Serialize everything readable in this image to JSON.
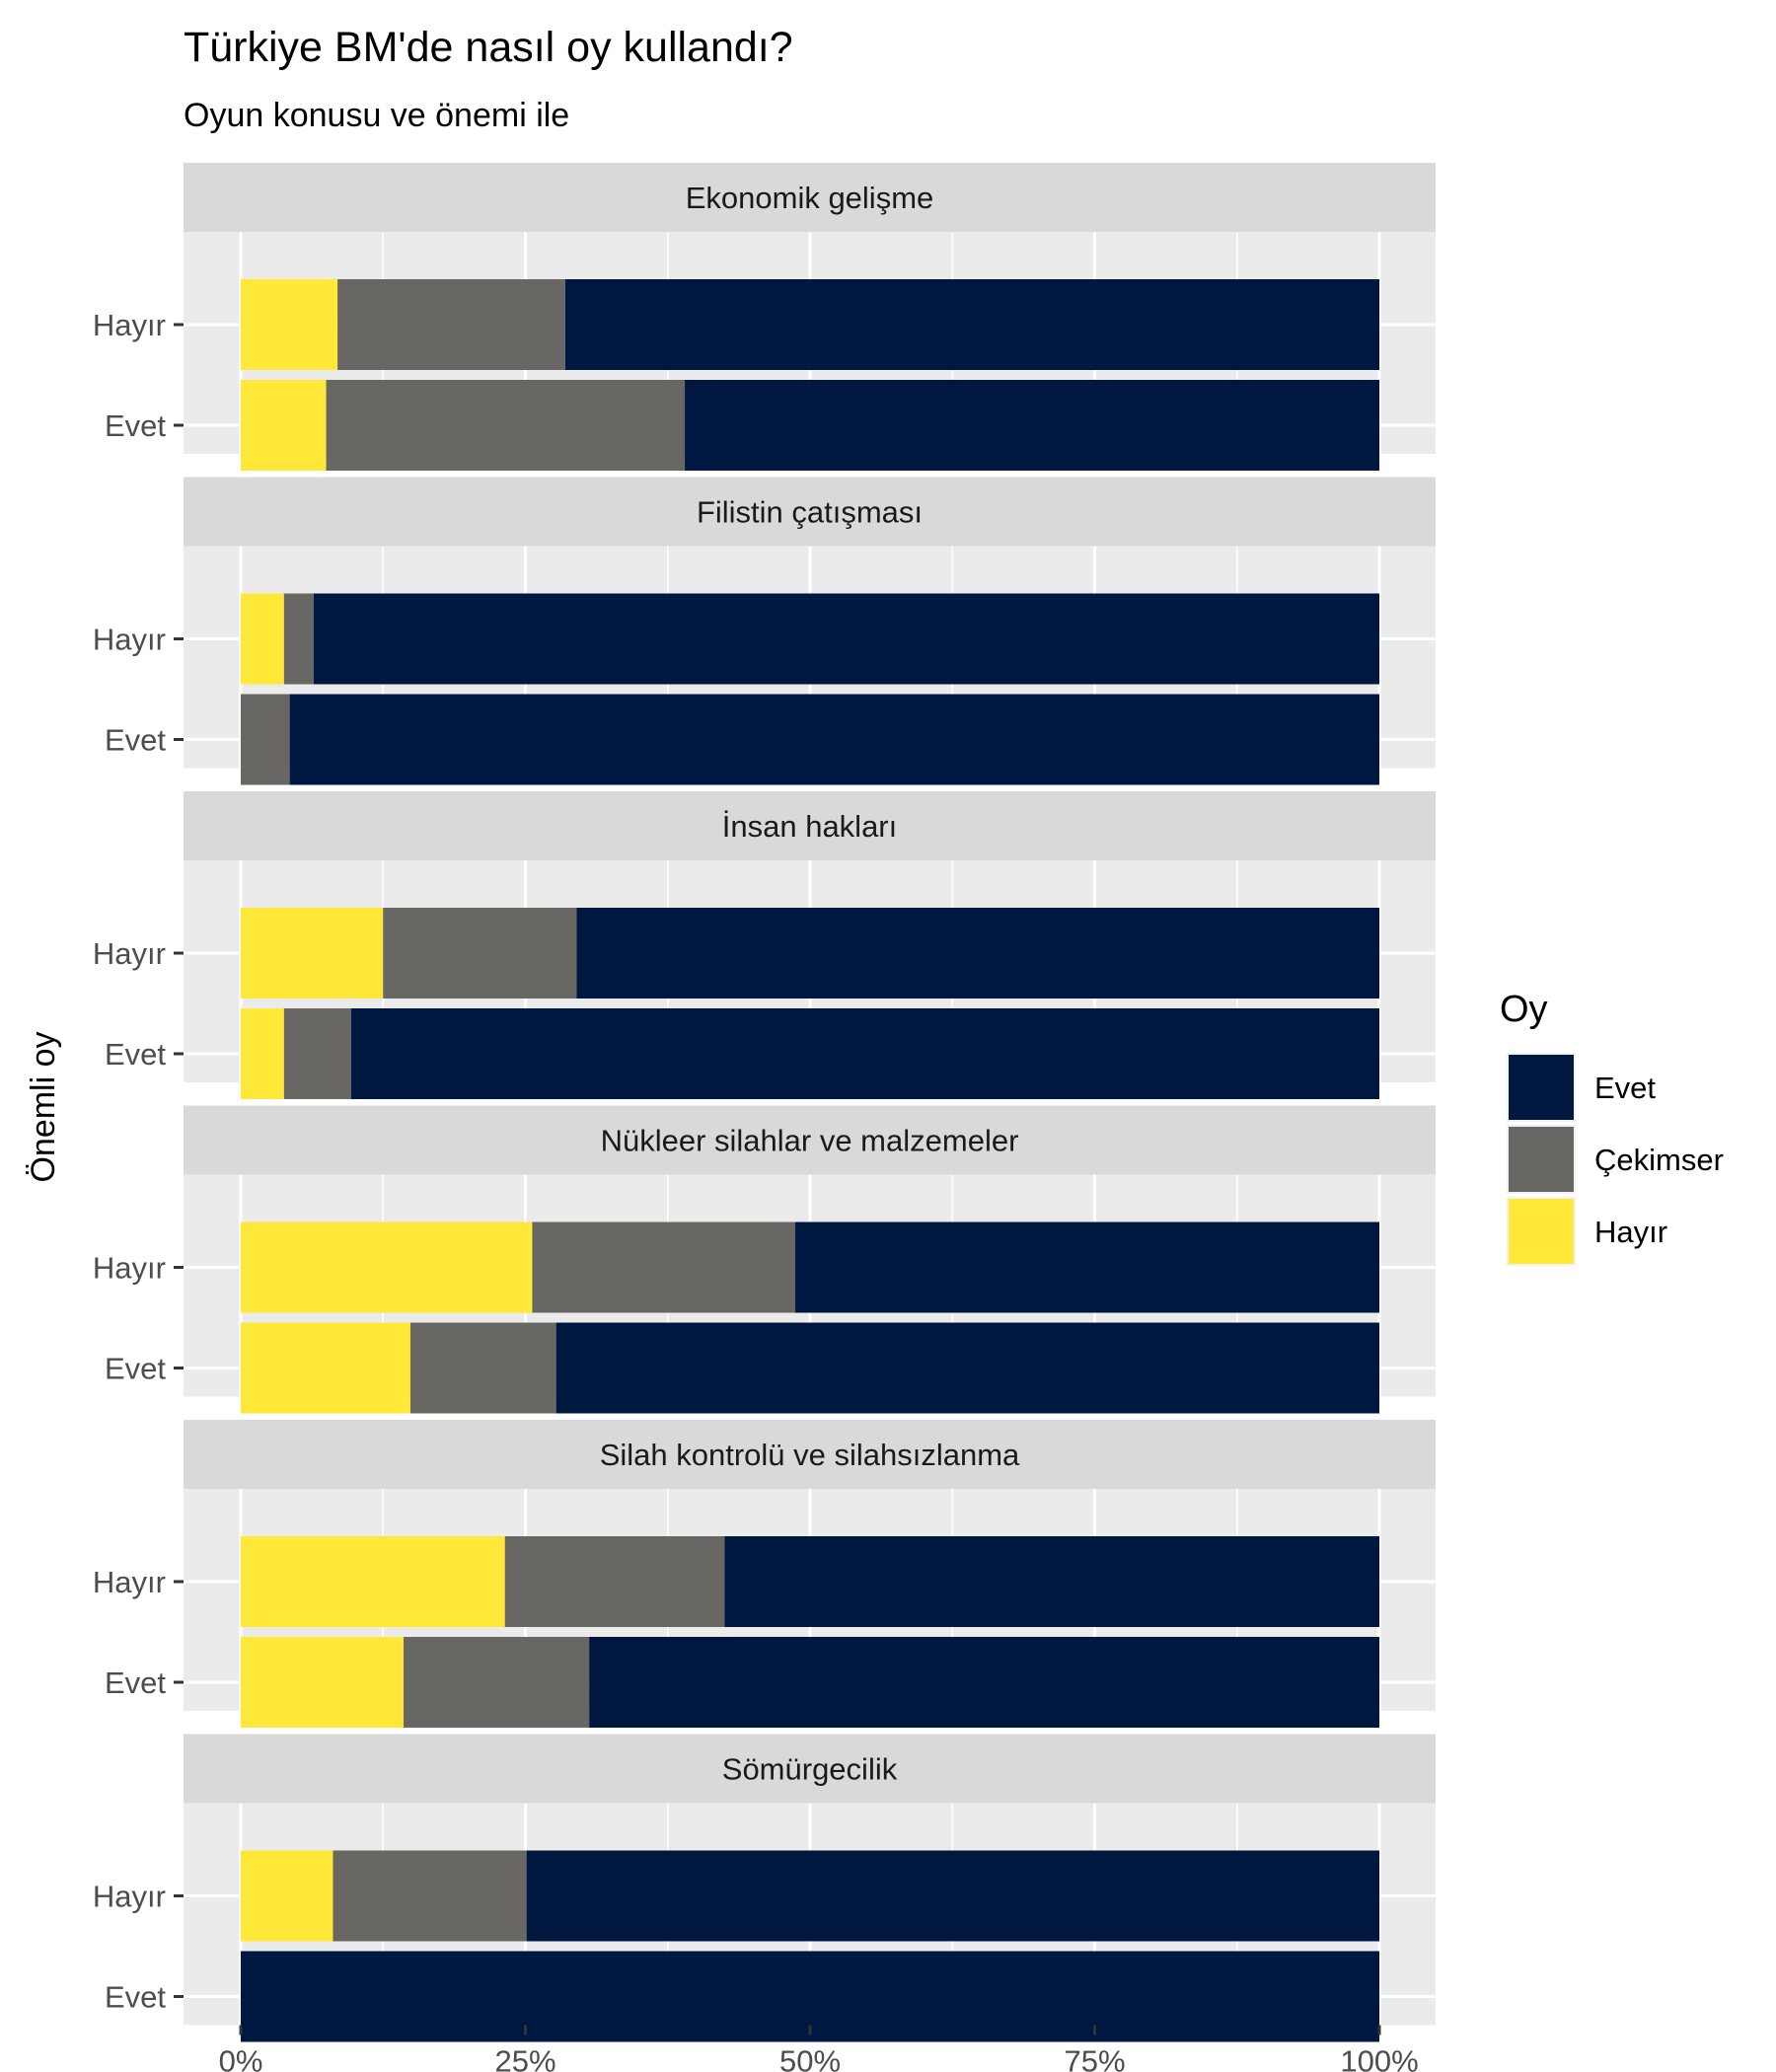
{
  "chart_data": {
    "type": "bar",
    "orientation": "horizontal",
    "stacked": "percent",
    "title": "Türkiye BM'de nasıl oy kullandı?",
    "subtitle": "Oyun konusu ve önemi ile",
    "xlabel": "",
    "ylabel": "Önemli oy",
    "xlim": [
      0,
      100
    ],
    "x_ticks": [
      "0%",
      "25%",
      "50%",
      "75%",
      "100%"
    ],
    "x_tick_values": [
      0,
      25,
      50,
      75,
      100
    ],
    "grid": true,
    "legend_position": "right",
    "legend": {
      "title": "Oy",
      "entries": [
        {
          "label": "Evet",
          "color": "#00183f"
        },
        {
          "label": "Çekimser",
          "color": "#686763"
        },
        {
          "label": "Hayır",
          "color": "#ffe838"
        }
      ]
    },
    "categories": [
      "Hayır",
      "Evet"
    ],
    "stack_order": [
      "Hayır",
      "Çekimser",
      "Evet"
    ],
    "series_colors": {
      "Evet": "#00183f",
      "Çekimser": "#686763",
      "Hayır": "#ffe838"
    },
    "facets": [
      {
        "title": "Ekonomik gelişme",
        "rows": [
          {
            "label": "Hayır",
            "values": {
              "Hayır": 8.5,
              "Çekimser": 20,
              "Evet": 71.5
            }
          },
          {
            "label": "Evet",
            "values": {
              "Hayır": 7.5,
              "Çekimser": 31.5,
              "Evet": 61
            }
          }
        ]
      },
      {
        "title": "Filistin çatışması",
        "rows": [
          {
            "label": "Hayır",
            "values": {
              "Hayır": 3.8,
              "Çekimser": 2.6,
              "Evet": 93.6
            }
          },
          {
            "label": "Evet",
            "values": {
              "Hayır": 0,
              "Çekimser": 4.3,
              "Evet": 95.7
            }
          }
        ]
      },
      {
        "title": "İnsan hakları",
        "rows": [
          {
            "label": "Hayır",
            "values": {
              "Hayır": 12.5,
              "Çekimser": 17,
              "Evet": 70.5
            }
          },
          {
            "label": "Evet",
            "values": {
              "Hayır": 3.8,
              "Çekimser": 5.9,
              "Evet": 90.3
            }
          }
        ]
      },
      {
        "title": "Nükleer silahlar ve malzemeler",
        "rows": [
          {
            "label": "Hayır",
            "values": {
              "Hayır": 25.6,
              "Çekimser": 23.1,
              "Evet": 51.3
            }
          },
          {
            "label": "Evet",
            "values": {
              "Hayır": 14.9,
              "Çekimser": 12.8,
              "Evet": 72.3
            }
          }
        ]
      },
      {
        "title": "Silah kontrolü ve silahsızlanma",
        "rows": [
          {
            "label": "Hayır",
            "values": {
              "Hayır": 23.2,
              "Çekimser": 19.3,
              "Evet": 57.5
            }
          },
          {
            "label": "Evet",
            "values": {
              "Hayır": 14.3,
              "Çekimser": 16.3,
              "Evet": 69.4
            }
          }
        ]
      },
      {
        "title": "Sömürgecilik",
        "rows": [
          {
            "label": "Hayır",
            "values": {
              "Hayır": 8.1,
              "Çekimser": 17,
              "Evet": 74.9
            }
          },
          {
            "label": "Evet",
            "values": {
              "Hayır": 0,
              "Çekimser": 0,
              "Evet": 100
            }
          }
        ]
      }
    ]
  }
}
